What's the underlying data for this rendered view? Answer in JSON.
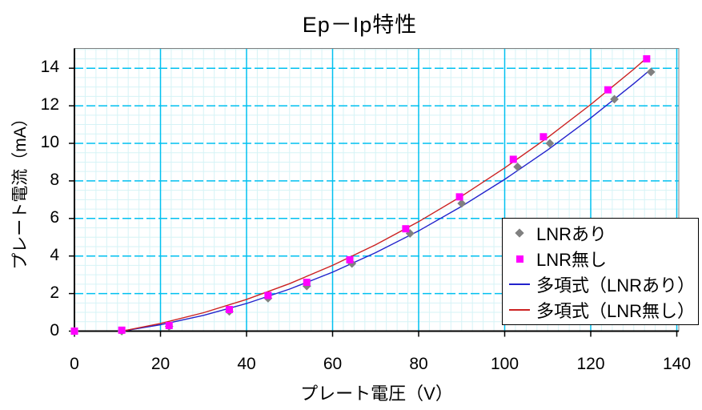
{
  "title": "Ep－Ip特性",
  "axes": {
    "x_title": "プレート電圧（V）",
    "y_title": "プレート電流（mA）"
  },
  "legend": {
    "items": [
      {
        "label": "LNRあり",
        "marker": "diamond",
        "color": "#808080"
      },
      {
        "label": "LNR無し",
        "marker": "square",
        "color": "#ff00ff"
      },
      {
        "label": "多項式（LNRあり）",
        "marker": "line",
        "color": "#2222cc"
      },
      {
        "label": "多項式（LNR無し）",
        "marker": "line",
        "color": "#cc2222"
      }
    ]
  },
  "colors": {
    "grid_major": "#00c0f0",
    "grid_minor": "#d6f3f6",
    "axis": "#000000",
    "plot_border": "#808080",
    "marker_lnr_with": "#808080",
    "marker_lnr_without": "#ff00ff",
    "trend_lnr_with": "#2222cc",
    "trend_lnr_without": "#cc2222",
    "background": "#ffffff"
  },
  "chart_data": {
    "type": "scatter",
    "title": "Ep－Ip特性",
    "xlabel": "プレート電圧（V）",
    "ylabel": "プレート電流（mA）",
    "xlim": [
      0,
      140.5
    ],
    "ylim": [
      0,
      15.05
    ],
    "x_ticks": [
      0,
      20,
      40,
      60,
      80,
      100,
      120,
      140
    ],
    "y_ticks": [
      0,
      2,
      4,
      6,
      8,
      10,
      12,
      14
    ],
    "x_minor_step": 2.5,
    "y_minor_step": 0.5,
    "grid": "major-and-minor",
    "legend_position": "inside-bottom-right",
    "series": [
      {
        "name": "LNRあり",
        "marker": "diamond",
        "color": "#808080",
        "points": [
          [
            0,
            0
          ],
          [
            11,
            0
          ],
          [
            22,
            0.25
          ],
          [
            36,
            1.05
          ],
          [
            45,
            1.75
          ],
          [
            54,
            2.4
          ],
          [
            64.5,
            3.6
          ],
          [
            78,
            5.2
          ],
          [
            90,
            6.8
          ],
          [
            103,
            8.75
          ],
          [
            110.5,
            10.0
          ],
          [
            125.5,
            12.35
          ],
          [
            134,
            13.8
          ]
        ]
      },
      {
        "name": "LNR無し",
        "marker": "square",
        "color": "#ff00ff",
        "points": [
          [
            0,
            0
          ],
          [
            11,
            0.05
          ],
          [
            22,
            0.3
          ],
          [
            36,
            1.15
          ],
          [
            45,
            1.9
          ],
          [
            54,
            2.6
          ],
          [
            64,
            3.8
          ],
          [
            77,
            5.45
          ],
          [
            89.5,
            7.15
          ],
          [
            102,
            9.15
          ],
          [
            109,
            10.35
          ],
          [
            124,
            12.85
          ],
          [
            133,
            14.5
          ]
        ]
      }
    ],
    "trendlines": [
      {
        "name": "多項式（LNRあり）",
        "color": "#2222cc",
        "points": [
          [
            11,
            0
          ],
          [
            20,
            0.34
          ],
          [
            30,
            0.84
          ],
          [
            40,
            1.47
          ],
          [
            50,
            2.24
          ],
          [
            60,
            3.14
          ],
          [
            70,
            4.18
          ],
          [
            80,
            5.34
          ],
          [
            90,
            6.65
          ],
          [
            100,
            8.08
          ],
          [
            110,
            9.65
          ],
          [
            120,
            11.35
          ],
          [
            130,
            13.18
          ],
          [
            134,
            13.95
          ]
        ]
      },
      {
        "name": "多項式（LNR無し）",
        "color": "#cc2222",
        "points": [
          [
            11,
            0
          ],
          [
            20,
            0.41
          ],
          [
            30,
            0.98
          ],
          [
            40,
            1.69
          ],
          [
            50,
            2.53
          ],
          [
            60,
            3.5
          ],
          [
            70,
            4.6
          ],
          [
            80,
            5.83
          ],
          [
            90,
            7.19
          ],
          [
            100,
            8.69
          ],
          [
            110,
            10.31
          ],
          [
            120,
            12.07
          ],
          [
            130,
            13.95
          ],
          [
            133,
            14.55
          ]
        ]
      }
    ]
  }
}
